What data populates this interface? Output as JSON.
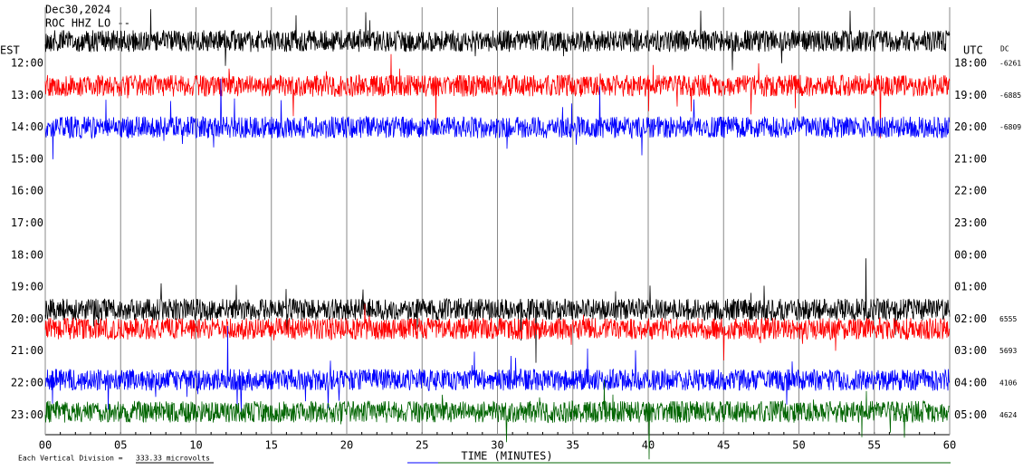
{
  "chart_data": {
    "type": "helicorder",
    "title": "ROC HHZ LO --",
    "date": "Dec30,2024",
    "left_axis_label": "EST",
    "right_axis_label": "UTC",
    "dc_label": "DC",
    "x_label": "TIME (MINUTES)",
    "scale_note": "Each Vertical Division =",
    "scale_value": "333.33 microvolts",
    "xlim": [
      0,
      60
    ],
    "xticks": [
      {
        "value": 0,
        "label": "00"
      },
      {
        "value": 5,
        "label": "05"
      },
      10,
      15,
      20,
      25,
      30,
      35,
      40,
      45,
      50,
      55,
      60
    ],
    "rows_est": [
      "12:00",
      "13:00",
      "14:00",
      "15:00",
      "16:00",
      "17:00",
      "18:00",
      "19:00",
      "20:00",
      "21:00",
      "22:00",
      "23:00"
    ],
    "rows_utc": [
      "18:00",
      "19:00",
      "20:00",
      "21:00",
      "22:00",
      "23:00",
      "00:00",
      "01:00",
      "02:00",
      "03:00",
      "04:00",
      "05:00"
    ],
    "dc": [
      -6261,
      -6885,
      -6809,
      null,
      null,
      null,
      null,
      null,
      6555,
      5693,
      4106,
      4624
    ],
    "traces": [
      {
        "color": "#000000",
        "row": -0.7
      },
      {
        "color": "#ff0000",
        "row": 0.7
      },
      {
        "color": "#0000ff",
        "row": 2.0
      },
      {
        "color": "#000000",
        "row": 7.7
      },
      {
        "color": "#ff0000",
        "row": 8.3
      },
      {
        "color": "#0000ff",
        "row": 9.9
      },
      {
        "color": "#006400",
        "row": 10.9
      }
    ]
  }
}
